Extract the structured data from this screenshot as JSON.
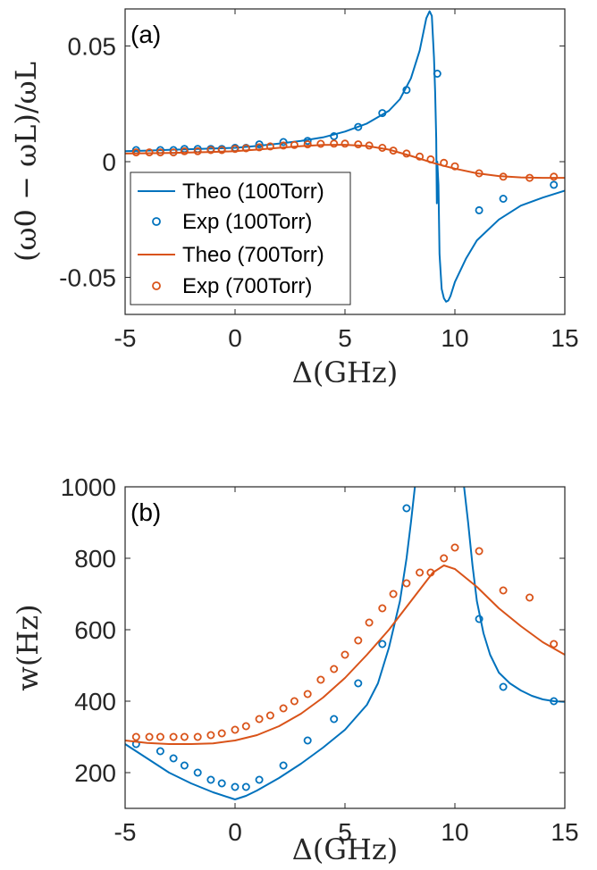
{
  "colors": {
    "blue": "#0072BD",
    "orange": "#D95319",
    "axis": "#262626"
  },
  "chart_data": [
    {
      "panel_label": "(a)",
      "type": "line",
      "xlabel": "Δ(GHz)",
      "ylabel": "(ω0 − ωL)/ωL",
      "xlim": [
        -5,
        15
      ],
      "ylim": [
        -0.066,
        0.066
      ],
      "xticks": [
        -5,
        0,
        5,
        10,
        15
      ],
      "xtick_labels": [
        "-5",
        "0",
        "5",
        "10",
        "15"
      ],
      "yticks": [
        -0.05,
        0,
        0.05
      ],
      "ytick_labels": [
        "-0.05",
        "0",
        "0.05"
      ],
      "legend_position": "lower-left",
      "series": [
        {
          "name": "Theo (100Torr)",
          "style": "line",
          "color": "#0072BD",
          "x": [
            -5,
            -4,
            -3,
            -2,
            -1,
            0,
            1,
            2,
            3,
            4,
            5,
            6,
            7,
            7.5,
            8,
            8.4,
            8.7,
            8.85,
            8.95,
            9.05,
            9.1,
            9.15,
            9.18,
            9.2,
            9.25,
            9.3,
            9.4,
            9.5,
            9.6,
            9.7,
            9.8,
            10,
            10.5,
            11,
            12,
            13,
            14,
            15
          ],
          "y": [
            0.0045,
            0.0048,
            0.0051,
            0.0054,
            0.0057,
            0.006,
            0.0068,
            0.0078,
            0.009,
            0.0105,
            0.013,
            0.0165,
            0.022,
            0.027,
            0.036,
            0.048,
            0.062,
            0.065,
            0.063,
            0.045,
            0.03,
            0.01,
            -0.018,
            0.0,
            -0.01,
            -0.04,
            -0.055,
            -0.059,
            -0.0605,
            -0.06,
            -0.058,
            -0.052,
            -0.042,
            -0.034,
            -0.025,
            -0.019,
            -0.0155,
            -0.0125
          ]
        },
        {
          "name": "Exp (100Torr)",
          "style": "marker",
          "color": "#0072BD",
          "x": [
            -4.5,
            -3.4,
            -2.8,
            -2.3,
            -1.7,
            -1.1,
            -0.6,
            0.0,
            0.5,
            1.1,
            2.2,
            3.3,
            4.5,
            5.6,
            6.7,
            7.8,
            9.2,
            11.1,
            12.2,
            14.5
          ],
          "y": [
            0.005,
            0.005,
            0.005,
            0.0055,
            0.0055,
            0.0055,
            0.0055,
            0.006,
            0.006,
            0.0075,
            0.0085,
            0.009,
            0.011,
            0.015,
            0.021,
            0.031,
            0.038,
            -0.021,
            -0.016,
            -0.01
          ]
        },
        {
          "name": "Theo (700Torr)",
          "style": "line",
          "color": "#D95319",
          "x": [
            -5,
            -3,
            -1,
            0,
            1,
            2,
            3,
            4,
            5,
            6,
            7,
            8,
            9,
            9.5,
            10,
            11,
            12,
            13,
            14,
            15
          ],
          "y": [
            0.0035,
            0.0038,
            0.0042,
            0.0045,
            0.0052,
            0.006,
            0.0067,
            0.0072,
            0.0073,
            0.0068,
            0.0052,
            0.0025,
            -0.0005,
            -0.0018,
            -0.003,
            -0.005,
            -0.0062,
            -0.0068,
            -0.007,
            -0.007
          ]
        },
        {
          "name": "Exp (700Torr)",
          "style": "marker",
          "color": "#D95319",
          "x": [
            -4.5,
            -3.9,
            -3.4,
            -2.8,
            -2.3,
            -1.7,
            -1.1,
            -0.6,
            0.0,
            0.5,
            1.1,
            1.6,
            2.2,
            2.7,
            3.3,
            3.9,
            4.5,
            5.0,
            5.6,
            6.1,
            6.7,
            7.2,
            7.8,
            8.4,
            8.9,
            9.5,
            10.0,
            11.1,
            12.2,
            13.4,
            14.5
          ],
          "y": [
            0.004,
            0.004,
            0.004,
            0.004,
            0.0045,
            0.0045,
            0.005,
            0.005,
            0.0055,
            0.0058,
            0.0062,
            0.0066,
            0.007,
            0.0072,
            0.0075,
            0.0077,
            0.0078,
            0.0078,
            0.0075,
            0.007,
            0.006,
            0.0048,
            0.0035,
            0.0022,
            0.001,
            -0.0005,
            -0.002,
            -0.005,
            -0.0065,
            -0.007,
            -0.0065
          ]
        }
      ]
    },
    {
      "panel_label": "(b)",
      "type": "line",
      "xlabel": "Δ(GHz)",
      "ylabel": "w(Hz)",
      "xlim": [
        -5,
        15
      ],
      "ylim": [
        100,
        1000
      ],
      "xticks": [
        -5,
        0,
        5,
        10,
        15
      ],
      "xtick_labels": [
        "-5",
        "0",
        "5",
        "10",
        "15"
      ],
      "yticks": [
        200,
        400,
        600,
        800,
        1000
      ],
      "ytick_labels": [
        "200",
        "400",
        "600",
        "800",
        "1000"
      ],
      "series": [
        {
          "name": "Theo (100Torr)",
          "style": "line",
          "color": "#0072BD",
          "x": [
            -5,
            -4,
            -3,
            -2,
            -1,
            0,
            0.5,
            1,
            2,
            3,
            4,
            5,
            6,
            6.5,
            7,
            7.5,
            7.8,
            8.0,
            8.2,
            10.4,
            10.6,
            10.8,
            11,
            11.3,
            11.6,
            12,
            12.5,
            13,
            13.5,
            14,
            14.5,
            15
          ],
          "y": [
            280,
            240,
            200,
            170,
            145,
            125,
            135,
            150,
            185,
            225,
            270,
            320,
            390,
            450,
            550,
            680,
            800,
            900,
            1010,
            1010,
            900,
            780,
            680,
            590,
            530,
            480,
            450,
            430,
            415,
            405,
            400,
            398
          ]
        },
        {
          "name": "Exp (100Torr)",
          "style": "marker",
          "color": "#0072BD",
          "x": [
            -4.5,
            -3.4,
            -2.8,
            -2.3,
            -1.7,
            -1.1,
            -0.6,
            0.0,
            0.5,
            1.1,
            2.2,
            3.3,
            4.5,
            5.6,
            6.7,
            7.8,
            11.1,
            12.2,
            14.5
          ],
          "y": [
            280,
            260,
            240,
            220,
            200,
            180,
            170,
            160,
            160,
            180,
            220,
            290,
            350,
            450,
            560,
            940,
            630,
            440,
            400
          ]
        },
        {
          "name": "Theo (700Torr)",
          "style": "line",
          "color": "#D95319",
          "x": [
            -5,
            -4,
            -3,
            -2,
            -1,
            0,
            1,
            2,
            3,
            4,
            5,
            6,
            7,
            8,
            9,
            9.5,
            10,
            11,
            12,
            13,
            14,
            15
          ],
          "y": [
            290,
            283,
            280,
            280,
            282,
            290,
            305,
            330,
            365,
            410,
            465,
            530,
            600,
            680,
            760,
            780,
            770,
            720,
            660,
            610,
            565,
            530
          ]
        },
        {
          "name": "Exp (700Torr)",
          "style": "marker",
          "color": "#D95319",
          "x": [
            -4.5,
            -3.9,
            -3.4,
            -2.8,
            -2.3,
            -1.7,
            -1.1,
            -0.6,
            0.0,
            0.5,
            1.1,
            1.6,
            2.2,
            2.7,
            3.3,
            3.9,
            4.5,
            5.0,
            5.6,
            6.1,
            6.7,
            7.2,
            7.8,
            8.4,
            8.9,
            9.5,
            10.0,
            11.1,
            12.2,
            13.4,
            14.5
          ],
          "y": [
            300,
            300,
            300,
            300,
            300,
            300,
            305,
            310,
            320,
            330,
            350,
            360,
            380,
            400,
            420,
            460,
            490,
            530,
            570,
            620,
            660,
            700,
            730,
            760,
            760,
            800,
            830,
            820,
            710,
            690,
            560
          ]
        }
      ]
    }
  ]
}
